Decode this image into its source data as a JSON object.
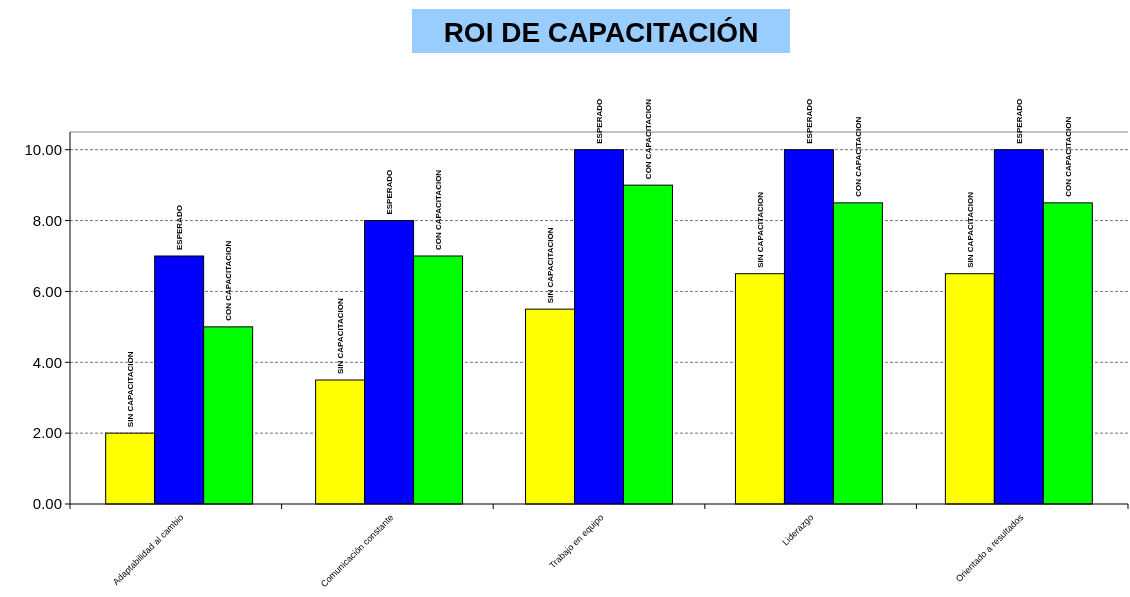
{
  "chart_data": {
    "type": "bar",
    "title": "ROI DE CAPACITACIÓN",
    "categories": [
      "Adaptabilidad al cambio",
      "Comunicación constante",
      "Trabajo en equipo",
      "Liderazgo",
      "Orientado a resultados"
    ],
    "series": [
      {
        "name": "SIN CAPACITACION",
        "color": "#ffff00",
        "values": [
          2,
          3.5,
          5.5,
          6.5,
          6.5
        ]
      },
      {
        "name": "ESPERADO",
        "color": "#0000ff",
        "values": [
          7,
          8,
          10,
          10,
          10
        ]
      },
      {
        "name": "CON CAPACITACION",
        "color": "#00ff00",
        "values": [
          5,
          7,
          9,
          8.5,
          8.5
        ]
      }
    ],
    "ylim": [
      0,
      10.5
    ],
    "yticks": [
      {
        "value": 0,
        "label": "0.00"
      },
      {
        "value": 2,
        "label": "2.00"
      },
      {
        "value": 4,
        "label": "4.00"
      },
      {
        "value": 6,
        "label": "6.00"
      },
      {
        "value": 8,
        "label": "8.00"
      },
      {
        "value": 10,
        "label": "10.00"
      }
    ],
    "grid": "y"
  }
}
